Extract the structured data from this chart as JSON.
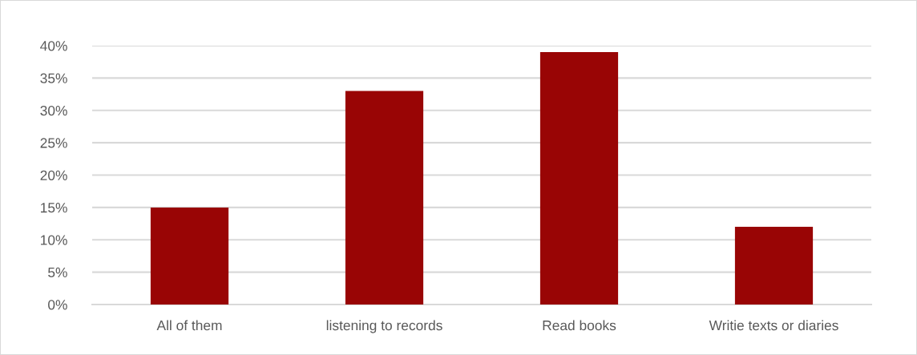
{
  "chart_data": {
    "type": "bar",
    "categories": [
      "All of them",
      "listening to records",
      "Read books",
      "Writie texts or diaries"
    ],
    "values": [
      15,
      33,
      39,
      12
    ],
    "color": "#990505",
    "ylim": [
      0,
      40
    ],
    "yticks": [
      {
        "value": 0,
        "label": "0%"
      },
      {
        "value": 5,
        "label": "5%"
      },
      {
        "value": 10,
        "label": "10%"
      },
      {
        "value": 15,
        "label": "15%"
      },
      {
        "value": 20,
        "label": "20%"
      },
      {
        "value": 25,
        "label": "25%"
      },
      {
        "value": 30,
        "label": "30%"
      },
      {
        "value": 35,
        "label": "35%"
      },
      {
        "value": 40,
        "label": "40%"
      }
    ],
    "grid": "y"
  }
}
